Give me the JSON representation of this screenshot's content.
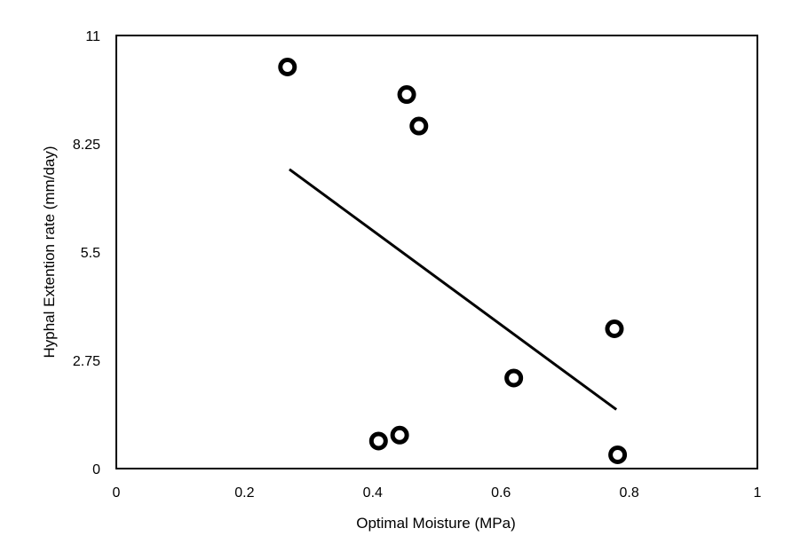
{
  "chart_data": {
    "type": "scatter",
    "title": "",
    "xlabel": "Optimal Moisture (MPa)",
    "ylabel": "Hyphal Extention rate (mm/day)",
    "xlim": [
      0,
      1
    ],
    "ylim": [
      0,
      11
    ],
    "x_ticks": [
      "0",
      "0.2",
      "0.4",
      "0.6",
      "0.8",
      "1"
    ],
    "y_ticks": [
      "0",
      "2.75",
      "5.5",
      "8.25",
      "11"
    ],
    "grid": false,
    "legend": "none",
    "points": [
      {
        "x": 0.267,
        "y": 10.2
      },
      {
        "x": 0.453,
        "y": 9.5
      },
      {
        "x": 0.472,
        "y": 8.7
      },
      {
        "x": 0.777,
        "y": 3.55
      },
      {
        "x": 0.62,
        "y": 2.3
      },
      {
        "x": 0.442,
        "y": 0.85
      },
      {
        "x": 0.409,
        "y": 0.7
      },
      {
        "x": 0.782,
        "y": 0.35
      }
    ],
    "trendline": {
      "x": [
        0.27,
        0.78
      ],
      "y": [
        7.6,
        1.5
      ]
    },
    "colors": {
      "marker_stroke": "#000000",
      "marker_fill": "#ffffff",
      "line": "#000000"
    }
  }
}
